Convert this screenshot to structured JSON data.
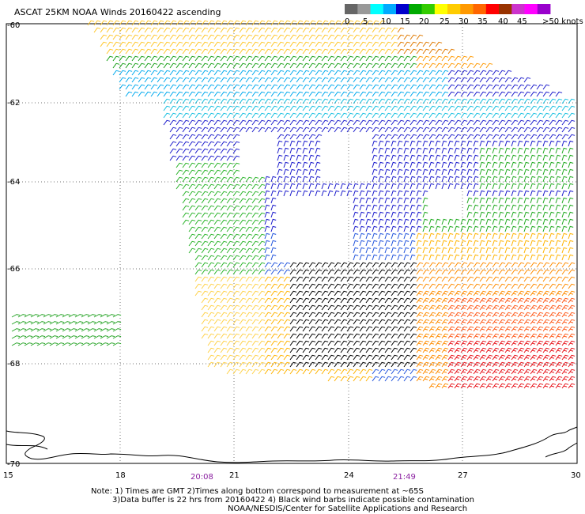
{
  "header": {
    "title": "ASCAT 25KM NOAA Winds 20160422 ascending"
  },
  "legend": {
    "colors": [
      "#666666",
      "#999999",
      "#00ffff",
      "#00aaff",
      "#0000cc",
      "#00aa00",
      "#33cc00",
      "#ffff00",
      "#ffcc00",
      "#ff9900",
      "#ff6600",
      "#ff0000",
      "#993300",
      "#cc33cc",
      "#ff00ff",
      "#9900cc"
    ],
    "labels": [
      "0",
      "5",
      "10",
      "15",
      "20",
      "25",
      "30",
      "35",
      "40",
      "45",
      ">50 knots"
    ]
  },
  "axes": {
    "y_labels": [
      "-60",
      "-62",
      "-64",
      "-66",
      "-68",
      "-70"
    ],
    "x_labels": [
      "15",
      "18",
      "21",
      "24",
      "27",
      "30"
    ]
  },
  "times": [
    "20:08",
    "21:49"
  ],
  "notes": {
    "line1": "Note: 1) Times are GMT 2)Times along bottom correspond to measurement at ~65S",
    "line2": "3)Data buffer is 22 hrs from 20160422 4) Black wind barbs indicate possible contamination",
    "line3": "NOAA/NESDIS/Center for Satellite Applications and Research"
  }
}
